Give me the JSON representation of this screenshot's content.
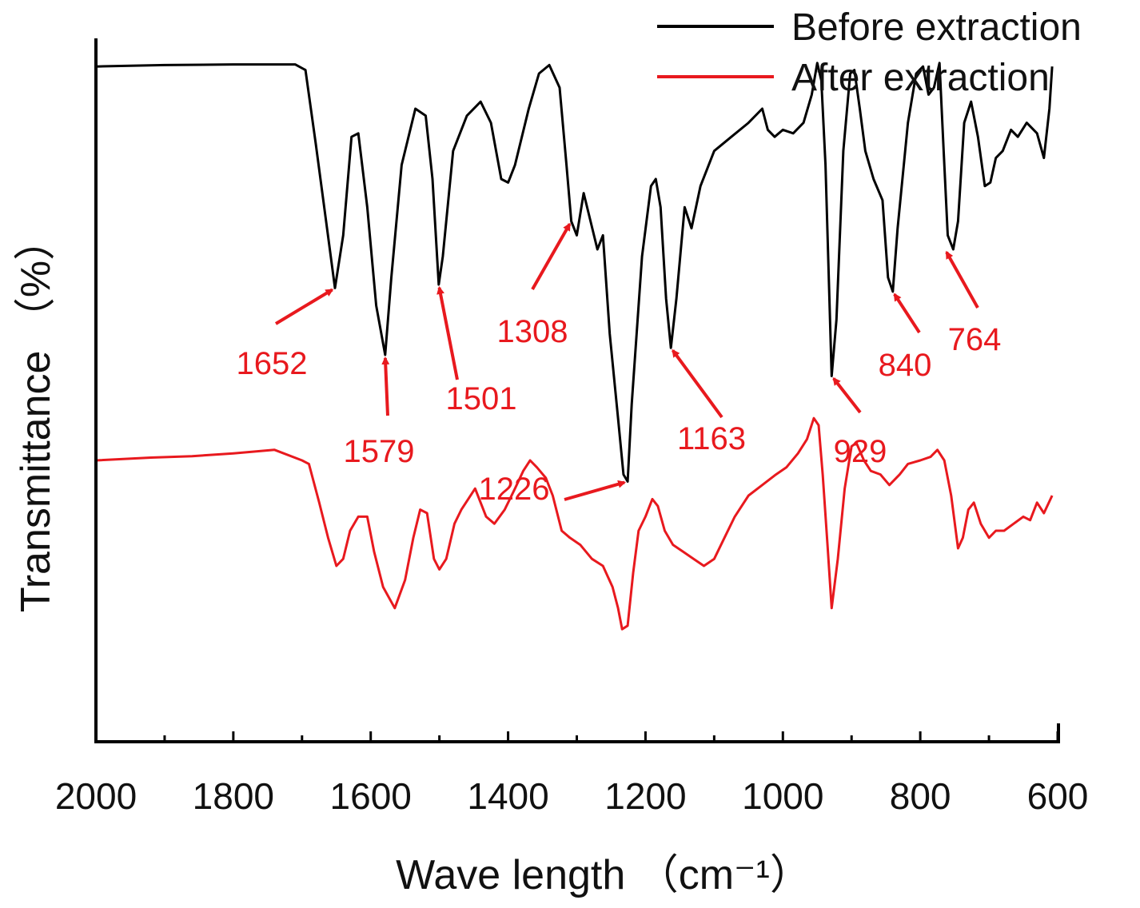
{
  "chart_data": {
    "type": "line",
    "title": "",
    "xlabel": "Wave length （cm⁻¹）",
    "ylabel": "Transmittance （%）",
    "xlim": [
      2000,
      600
    ],
    "ylim": [
      0,
      100
    ],
    "x_reversed": true,
    "x_ticks": [
      2000,
      1800,
      1600,
      1400,
      1200,
      1000,
      800,
      600
    ],
    "x_tick_labels": [
      "2000",
      "1800",
      "1600",
      "1400",
      "1200",
      "1000",
      "800",
      "600"
    ],
    "y_ticks_shown": false,
    "grid": false,
    "legend_position": "top-right",
    "series": [
      {
        "name": "Before extraction",
        "color": "#000000",
        "points": [
          [
            2000,
            96
          ],
          [
            1900,
            96.2
          ],
          [
            1800,
            96.3
          ],
          [
            1710,
            96.3
          ],
          [
            1695,
            95.5
          ],
          [
            1680,
            85
          ],
          [
            1665,
            74
          ],
          [
            1652,
            64.5
          ],
          [
            1640,
            72
          ],
          [
            1628,
            86
          ],
          [
            1618,
            86.5
          ],
          [
            1605,
            76
          ],
          [
            1592,
            62
          ],
          [
            1579,
            55
          ],
          [
            1570,
            66
          ],
          [
            1555,
            82
          ],
          [
            1535,
            90
          ],
          [
            1520,
            89
          ],
          [
            1510,
            80
          ],
          [
            1501,
            65
          ],
          [
            1495,
            69
          ],
          [
            1480,
            84
          ],
          [
            1460,
            89
          ],
          [
            1440,
            91
          ],
          [
            1425,
            88
          ],
          [
            1410,
            80
          ],
          [
            1400,
            79.5
          ],
          [
            1390,
            82
          ],
          [
            1370,
            90
          ],
          [
            1355,
            95
          ],
          [
            1340,
            96.2
          ],
          [
            1325,
            93
          ],
          [
            1315,
            82
          ],
          [
            1308,
            74
          ],
          [
            1300,
            72
          ],
          [
            1290,
            78
          ],
          [
            1280,
            74
          ],
          [
            1270,
            70
          ],
          [
            1262,
            72
          ],
          [
            1252,
            58
          ],
          [
            1240,
            46
          ],
          [
            1232,
            38
          ],
          [
            1226,
            37
          ],
          [
            1220,
            48
          ],
          [
            1205,
            69
          ],
          [
            1192,
            79
          ],
          [
            1185,
            80
          ],
          [
            1178,
            76
          ],
          [
            1170,
            63
          ],
          [
            1163,
            56
          ],
          [
            1155,
            63
          ],
          [
            1143,
            76
          ],
          [
            1133,
            73
          ],
          [
            1120,
            79
          ],
          [
            1100,
            84
          ],
          [
            1075,
            86
          ],
          [
            1050,
            88
          ],
          [
            1030,
            90
          ],
          [
            1022,
            87
          ],
          [
            1012,
            86
          ],
          [
            1000,
            87
          ],
          [
            985,
            86.5
          ],
          [
            970,
            88
          ],
          [
            958,
            92
          ],
          [
            950,
            96.5
          ],
          [
            944,
            94
          ],
          [
            938,
            82
          ],
          [
            929,
            52
          ],
          [
            922,
            60
          ],
          [
            912,
            84
          ],
          [
            902,
            95
          ],
          [
            896,
            95.5
          ],
          [
            888,
            90
          ],
          [
            880,
            84
          ],
          [
            868,
            80
          ],
          [
            855,
            77
          ],
          [
            847,
            66
          ],
          [
            840,
            64
          ],
          [
            833,
            73
          ],
          [
            818,
            88
          ],
          [
            806,
            95
          ],
          [
            796,
            96
          ],
          [
            788,
            92
          ],
          [
            780,
            93
          ],
          [
            772,
            96.5
          ],
          [
            766,
            84
          ],
          [
            760,
            72
          ],
          [
            752,
            70
          ],
          [
            745,
            74
          ],
          [
            736,
            88
          ],
          [
            726,
            91
          ],
          [
            716,
            86
          ],
          [
            706,
            79
          ],
          [
            698,
            79.5
          ],
          [
            690,
            83
          ],
          [
            680,
            84
          ],
          [
            668,
            87
          ],
          [
            658,
            86
          ],
          [
            645,
            88
          ],
          [
            630,
            86.5
          ],
          [
            620,
            83
          ],
          [
            612,
            90
          ],
          [
            608,
            96
          ]
        ]
      },
      {
        "name": "After extraction",
        "color": "#e8191e",
        "points": [
          [
            2000,
            40
          ],
          [
            1920,
            40.4
          ],
          [
            1860,
            40.6
          ],
          [
            1800,
            41
          ],
          [
            1740,
            41.5
          ],
          [
            1700,
            40
          ],
          [
            1690,
            39.5
          ],
          [
            1675,
            34
          ],
          [
            1662,
            29
          ],
          [
            1650,
            25
          ],
          [
            1640,
            26
          ],
          [
            1630,
            30
          ],
          [
            1618,
            32
          ],
          [
            1605,
            32
          ],
          [
            1595,
            27
          ],
          [
            1582,
            22
          ],
          [
            1565,
            19
          ],
          [
            1550,
            23
          ],
          [
            1538,
            29
          ],
          [
            1528,
            33
          ],
          [
            1518,
            32.5
          ],
          [
            1508,
            26
          ],
          [
            1500,
            24.5
          ],
          [
            1490,
            26
          ],
          [
            1478,
            31
          ],
          [
            1468,
            33
          ],
          [
            1458,
            34.5
          ],
          [
            1448,
            36
          ],
          [
            1440,
            34
          ],
          [
            1432,
            32
          ],
          [
            1420,
            31
          ],
          [
            1405,
            33
          ],
          [
            1390,
            36
          ],
          [
            1378,
            38.5
          ],
          [
            1368,
            40
          ],
          [
            1358,
            39
          ],
          [
            1345,
            37.5
          ],
          [
            1335,
            35
          ],
          [
            1322,
            30
          ],
          [
            1310,
            29
          ],
          [
            1295,
            28
          ],
          [
            1278,
            26
          ],
          [
            1262,
            25
          ],
          [
            1248,
            22
          ],
          [
            1240,
            19
          ],
          [
            1234,
            16
          ],
          [
            1226,
            16.5
          ],
          [
            1218,
            24
          ],
          [
            1210,
            30
          ],
          [
            1200,
            32
          ],
          [
            1190,
            34.5
          ],
          [
            1182,
            33.5
          ],
          [
            1172,
            30
          ],
          [
            1160,
            28
          ],
          [
            1145,
            27
          ],
          [
            1130,
            26
          ],
          [
            1115,
            25
          ],
          [
            1100,
            26
          ],
          [
            1085,
            29
          ],
          [
            1070,
            32
          ],
          [
            1050,
            35
          ],
          [
            1030,
            36.5
          ],
          [
            1010,
            38
          ],
          [
            995,
            39
          ],
          [
            978,
            41
          ],
          [
            965,
            43
          ],
          [
            955,
            46
          ],
          [
            948,
            45
          ],
          [
            942,
            38
          ],
          [
            935,
            28
          ],
          [
            929,
            19
          ],
          [
            920,
            26
          ],
          [
            910,
            36
          ],
          [
            900,
            42
          ],
          [
            893,
            42.5
          ],
          [
            882,
            40
          ],
          [
            872,
            38.5
          ],
          [
            858,
            38
          ],
          [
            845,
            36.5
          ],
          [
            830,
            38
          ],
          [
            818,
            39.5
          ],
          [
            800,
            40
          ],
          [
            785,
            40.5
          ],
          [
            775,
            41.5
          ],
          [
            765,
            40
          ],
          [
            755,
            35
          ],
          [
            745,
            27.5
          ],
          [
            738,
            29
          ],
          [
            730,
            33
          ],
          [
            722,
            34
          ],
          [
            712,
            31
          ],
          [
            700,
            29
          ],
          [
            690,
            30
          ],
          [
            678,
            30
          ],
          [
            664,
            31
          ],
          [
            650,
            32
          ],
          [
            640,
            31.5
          ],
          [
            630,
            34
          ],
          [
            620,
            32.5
          ],
          [
            608,
            35
          ]
        ]
      }
    ],
    "annotations": [
      {
        "label": "1652",
        "x": 1652,
        "y": 64.5
      },
      {
        "label": "1579",
        "x": 1579,
        "y": 55
      },
      {
        "label": "1501",
        "x": 1501,
        "y": 65
      },
      {
        "label": "1308",
        "x": 1308,
        "y": 74
      },
      {
        "label": "1226",
        "x": 1226,
        "y": 37
      },
      {
        "label": "1163",
        "x": 1163,
        "y": 56
      },
      {
        "label": "929",
        "x": 929,
        "y": 52
      },
      {
        "label": "840",
        "x": 840,
        "y": 64
      },
      {
        "label": "764",
        "x": 764,
        "y": 70
      }
    ]
  },
  "annotation_color": "#e8191e"
}
